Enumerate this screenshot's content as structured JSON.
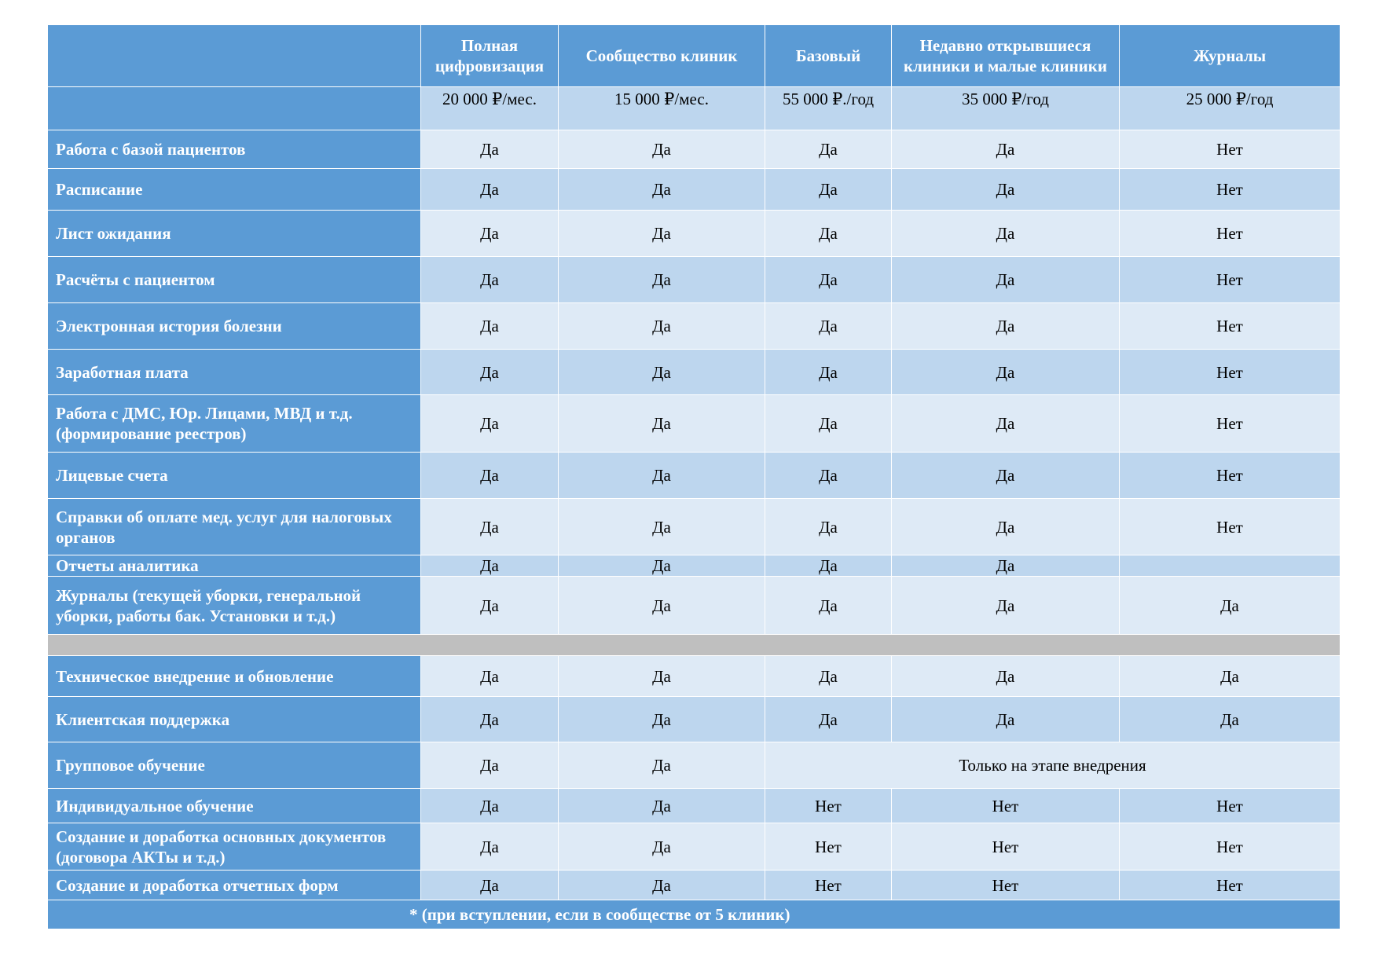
{
  "columns": [
    "Полная цифровизация",
    "Сообщество клиник",
    "Базовый",
    "Недавно открывшиеся клиники и малые клиники",
    "Журналы"
  ],
  "prices": [
    "20 000 ₽/мес.",
    "15 000 ₽/мес.",
    "55 000 ₽./год",
    "35 000 ₽/год",
    "25 000 ₽/год"
  ],
  "rows": [
    {
      "label": "Работа с базой пациентов",
      "values": [
        "Да",
        "Да",
        "Да",
        "Да",
        "Нет"
      ]
    },
    {
      "label": "Расписание",
      "values": [
        "Да",
        "Да",
        "Да",
        "Да",
        "Нет"
      ]
    },
    {
      "label": "Лист ожидания",
      "values": [
        "Да",
        "Да",
        "Да",
        "Да",
        "Нет"
      ]
    },
    {
      "label": "Расчёты с пациентом",
      "values": [
        "Да",
        "Да",
        "Да",
        "Да",
        "Нет"
      ]
    },
    {
      "label": "Электронная история болезни",
      "values": [
        "Да",
        "Да",
        "Да",
        "Да",
        "Нет"
      ]
    },
    {
      "label": "Заработная плата",
      "values": [
        "Да",
        "Да",
        "Да",
        "Да",
        "Нет"
      ]
    },
    {
      "label": "Работа с ДМС, Юр. Лицами, МВД и т.д. (формирование реестров)",
      "values": [
        "Да",
        "Да",
        "Да",
        "Да",
        "Нет"
      ]
    },
    {
      "label": "Лицевые счета",
      "values": [
        "Да",
        "Да",
        "Да",
        "Да",
        "Нет"
      ]
    },
    {
      "label": "Справки об оплате мед. услуг для налоговых органов",
      "values": [
        "Да",
        "Да",
        "Да",
        "Да",
        "Нет"
      ]
    },
    {
      "label": "Отчеты аналитика",
      "values": [
        "Да",
        "Да",
        "Да",
        "Да",
        ""
      ]
    },
    {
      "label": "Журналы (текущей уборки, генеральной уборки, работы бак. Установки и т.д.)",
      "values": [
        "Да",
        "Да",
        "Да",
        "Да",
        "Да"
      ]
    }
  ],
  "rows2": [
    {
      "label": "Техническое внедрение и обновление",
      "values": [
        "Да",
        "Да",
        "Да",
        "Да",
        "Да"
      ]
    },
    {
      "label": "Клиентская поддержка",
      "values": [
        "Да",
        "Да",
        "Да",
        "Да",
        "Да"
      ]
    },
    {
      "label": "Групповое обучение",
      "values": [
        "Да",
        "Да"
      ],
      "merged": "Только на этапе внедрения"
    },
    {
      "label": "Индивидуальное обучение",
      "values": [
        "Да",
        "Да",
        "Нет",
        "Нет",
        "Нет"
      ]
    },
    {
      "label": "Создание и доработка основных документов (договора АКТы и т.д.)",
      "values": [
        "Да",
        "Да",
        "Нет",
        "Нет",
        "Нет"
      ]
    },
    {
      "label": "Создание и доработка отчетных форм",
      "values": [
        "Да",
        "Да",
        "Нет",
        "Нет",
        "Нет"
      ]
    }
  ],
  "footnote": "* (при вступлении, если в сообществе от 5 клиник)"
}
